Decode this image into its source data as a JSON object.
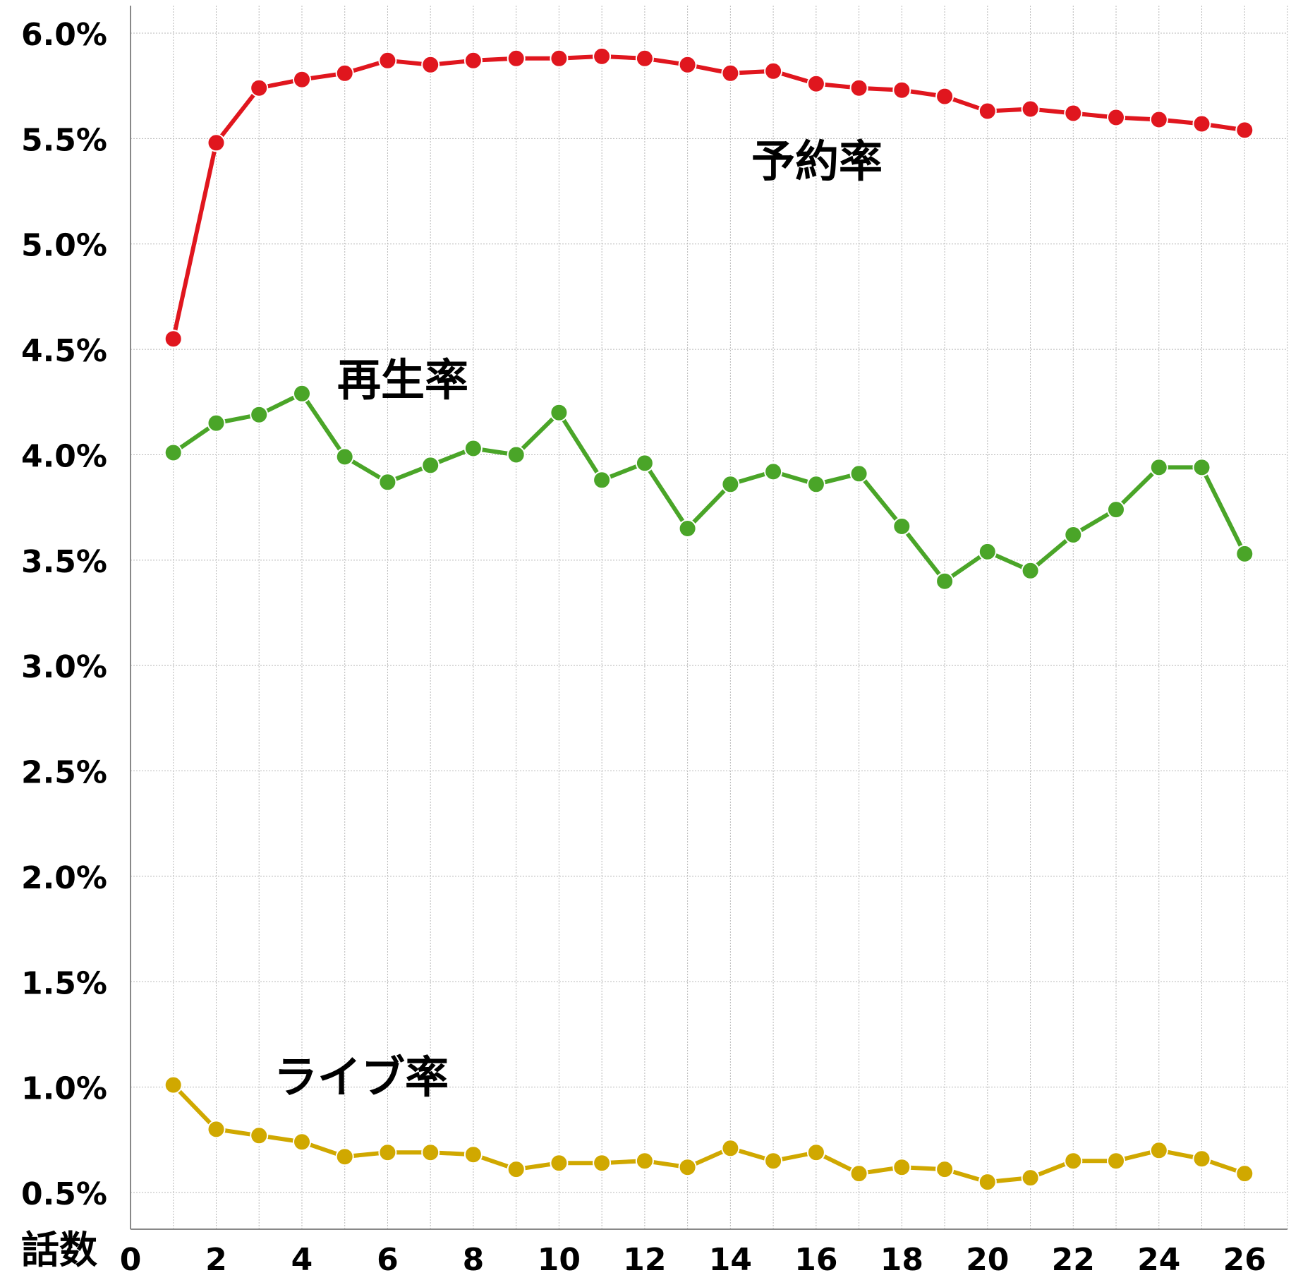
{
  "chart_data": {
    "type": "line",
    "xlabel": "話数",
    "ylabel": "",
    "xlim": [
      0,
      27
    ],
    "ylim": [
      0.5,
      6.0
    ],
    "x_ticks": [
      0,
      2,
      4,
      6,
      8,
      10,
      12,
      14,
      16,
      18,
      20,
      22,
      24,
      26
    ],
    "y_ticks": [
      0.5,
      1.0,
      1.5,
      2.0,
      2.5,
      3.0,
      3.5,
      4.0,
      4.5,
      5.0,
      5.5,
      6.0
    ],
    "y_tick_labels": [
      "0.5%",
      "1.0%",
      "1.5%",
      "2.0%",
      "2.5%",
      "3.0%",
      "3.5%",
      "4.0%",
      "4.5%",
      "5.0%",
      "5.5%",
      "6.0%"
    ],
    "grid": true,
    "x": [
      1,
      2,
      3,
      4,
      5,
      6,
      7,
      8,
      9,
      10,
      11,
      12,
      13,
      14,
      15,
      16,
      17,
      18,
      19,
      20,
      21,
      22,
      23,
      24,
      25,
      26
    ],
    "series": [
      {
        "name": "予約率",
        "color": "#e0161e",
        "values": [
          4.55,
          5.48,
          5.74,
          5.78,
          5.81,
          5.87,
          5.85,
          5.87,
          5.88,
          5.88,
          5.89,
          5.88,
          5.85,
          5.81,
          5.82,
          5.76,
          5.74,
          5.73,
          5.7,
          5.63,
          5.64,
          5.62,
          5.6,
          5.59,
          5.57,
          5.54
        ]
      },
      {
        "name": "再生率",
        "color": "#4aa528",
        "values": [
          4.01,
          4.15,
          4.19,
          4.29,
          3.99,
          3.87,
          3.95,
          4.03,
          4.0,
          4.2,
          3.88,
          3.96,
          3.65,
          3.86,
          3.92,
          3.86,
          3.91,
          3.66,
          3.4,
          3.54,
          3.45,
          3.62,
          3.74,
          3.94,
          3.94,
          3.53
        ]
      },
      {
        "name": "ライブ率",
        "color": "#d0a800",
        "values": [
          1.01,
          0.8,
          0.77,
          0.74,
          0.67,
          0.69,
          0.69,
          0.68,
          0.61,
          0.64,
          0.64,
          0.65,
          0.62,
          0.71,
          0.65,
          0.69,
          0.59,
          0.62,
          0.61,
          0.55,
          0.57,
          0.65,
          0.65,
          0.7,
          0.66,
          0.59
        ]
      }
    ]
  }
}
